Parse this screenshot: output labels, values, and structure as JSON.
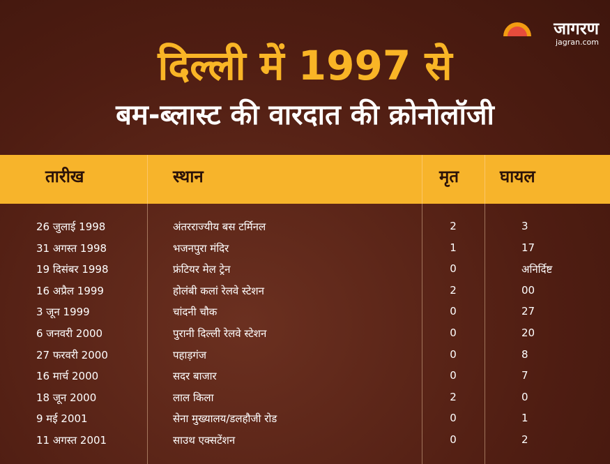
{
  "header": {
    "title_line1": "दिल्ली में 1997 से",
    "title_line2": "बम-ब्लास्ट की वारदात की क्रोनोलॉजी"
  },
  "logo": {
    "name": "जागरण",
    "site": "jagran.com"
  },
  "table": {
    "columns": [
      "तारीख",
      "स्थान",
      "मृत",
      "घायल"
    ],
    "rows": [
      [
        "26 जुलाई 1998",
        "अंतरराज्यीय बस टर्मिनल",
        "2",
        "3"
      ],
      [
        "31 अगस्त 1998",
        "भजनपुरा मंदिर",
        "1",
        "17"
      ],
      [
        "19 दिसंबर 1998",
        "फ्रंटियर मेल ट्रेन",
        "0",
        "अनिर्दिष्ट"
      ],
      [
        "16 अप्रैल 1999",
        "होलंबी कलां रेलवे स्टेशन",
        "2",
        "00"
      ],
      [
        "3 जून 1999",
        "चांदनी चौक",
        "0",
        "27"
      ],
      [
        "6 जनवरी 2000",
        "पुरानी दिल्ली रेलवे स्टेशन",
        "0",
        "20"
      ],
      [
        "27 फरवरी 2000",
        "पहाड़गंज",
        "0",
        "8"
      ],
      [
        "16 मार्च 2000",
        "सदर बाजार",
        "0",
        "7"
      ],
      [
        "18 जून 2000",
        "लाल किला",
        "2",
        "0"
      ],
      [
        "9 मई 2001",
        "सेना मुख्यालय/डलहौजी रोड",
        "0",
        "1"
      ],
      [
        "11 अगस्त 2001",
        "साउथ एक्सटेंशन",
        "0",
        "2"
      ]
    ]
  }
}
